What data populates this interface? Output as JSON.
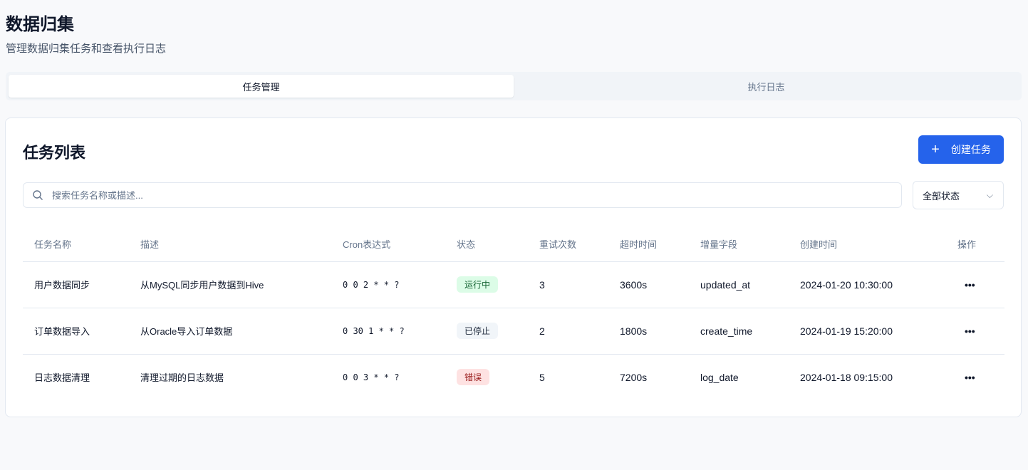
{
  "page": {
    "title": "数据归集",
    "subtitle": "管理数据归集任务和查看执行日志"
  },
  "tabs": [
    {
      "label": "任务管理",
      "active": true
    },
    {
      "label": "执行日志",
      "active": false
    }
  ],
  "card": {
    "title": "任务列表",
    "create_label": "创建任务",
    "search_placeholder": "搜索任务名称或描述...",
    "status_filter": "全部状态"
  },
  "table": {
    "headers": [
      "任务名称",
      "描述",
      "Cron表达式",
      "状态",
      "重试次数",
      "超时时间",
      "增量字段",
      "创建时间",
      "操作"
    ],
    "rows": [
      {
        "name": "用户数据同步",
        "desc": "从MySQL同步用户数据到Hive",
        "cron": "0 0 2 * * ?",
        "status": "运行中",
        "status_bg": "#dcfce7",
        "status_fg": "#166534",
        "retry": "3",
        "timeout": "3600s",
        "field": "updated_at",
        "created": "2024-01-20 10:30:00",
        "action": "•••"
      },
      {
        "name": "订单数据导入",
        "desc": "从Oracle导入订单数据",
        "cron": "0 30 1 * * ?",
        "status": "已停止",
        "status_bg": "#f1f5f9",
        "status_fg": "#1e293b",
        "retry": "2",
        "timeout": "1800s",
        "field": "create_time",
        "created": "2024-01-19 15:20:00",
        "action": "•••"
      },
      {
        "name": "日志数据清理",
        "desc": "清理过期的日志数据",
        "cron": "0 0 3 * * ?",
        "status": "错误",
        "status_bg": "#fee2e2",
        "status_fg": "#991b1b",
        "retry": "5",
        "timeout": "7200s",
        "field": "log_date",
        "created": "2024-01-18 09:15:00",
        "action": "•••"
      }
    ]
  },
  "colors": {
    "primary": "#2563eb"
  }
}
